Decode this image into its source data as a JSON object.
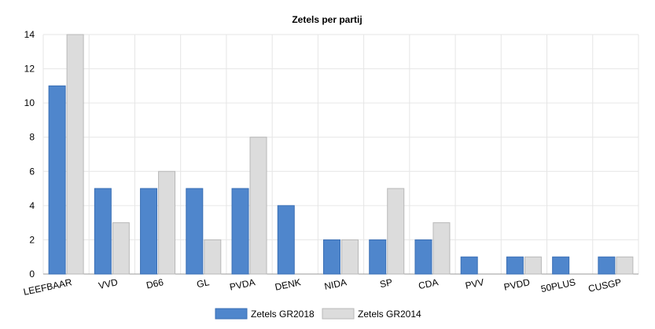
{
  "chart_data": {
    "type": "bar",
    "title": "Zetels per partij",
    "xlabel": "",
    "ylabel": "",
    "ylim": [
      0,
      14
    ],
    "yticks": [
      0,
      2,
      4,
      6,
      8,
      10,
      12,
      14
    ],
    "grid": true,
    "legend_position": "bottom",
    "categories": [
      "LEEFBAAR",
      "VVD",
      "D66",
      "GL",
      "PVDA",
      "DENK",
      "NIDA",
      "SP",
      "CDA",
      "PVV",
      "PVDD",
      "50PLUS",
      "CUSGP"
    ],
    "series": [
      {
        "name": "Zetels GR2018",
        "color": "#4f86cc",
        "values": [
          11,
          5,
          5,
          5,
          5,
          4,
          2,
          2,
          2,
          1,
          1,
          1,
          1
        ]
      },
      {
        "name": "Zetels GR2014",
        "color": "#dcdcdc",
        "values": [
          14,
          3,
          6,
          2,
          8,
          0,
          2,
          5,
          3,
          0,
          1,
          0,
          1
        ]
      }
    ]
  }
}
